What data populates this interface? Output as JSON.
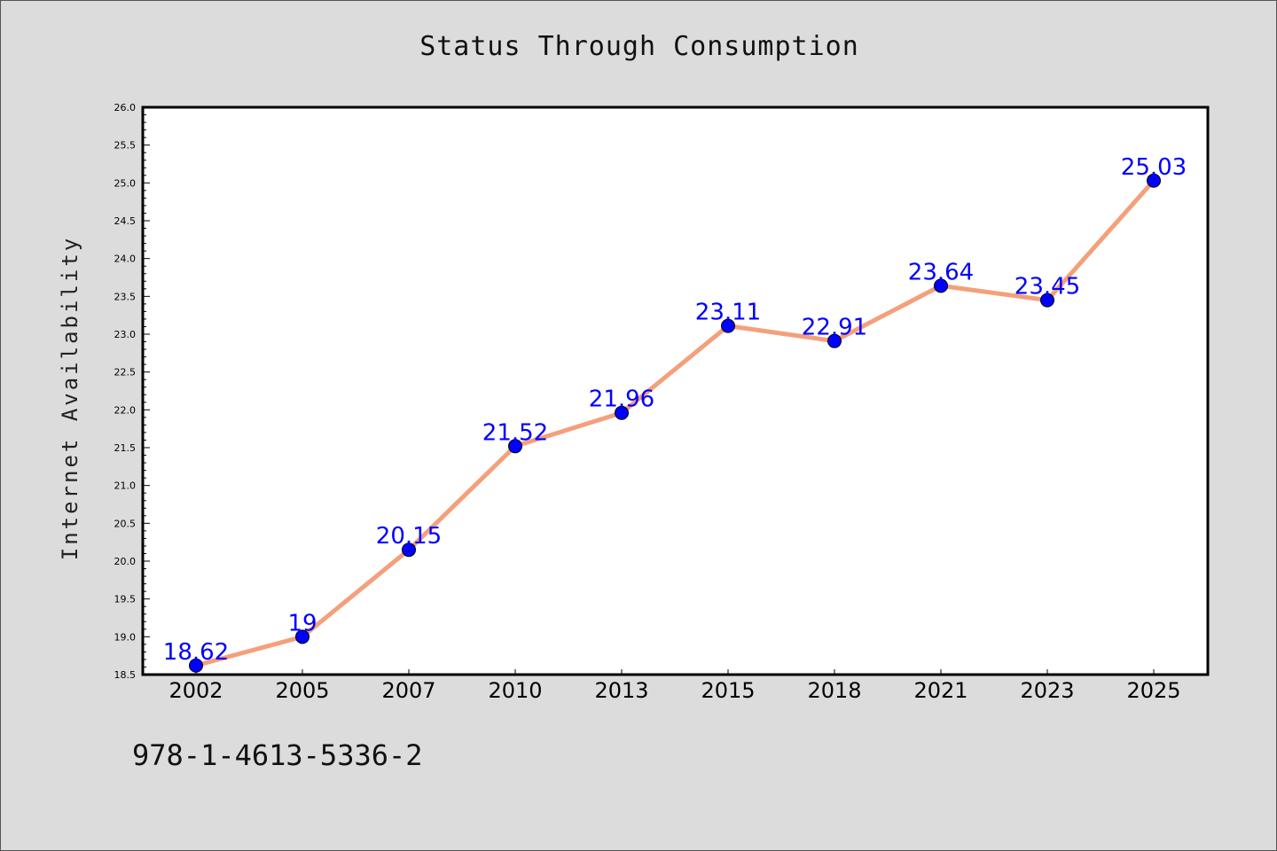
{
  "page": {
    "footer_code": "978-1-4613-5336-2"
  },
  "chart_data": {
    "type": "line",
    "title": "Status Through Consumption",
    "xlabel": "",
    "ylabel": "Internet Availability",
    "categories": [
      "2002",
      "2005",
      "2007",
      "2010",
      "2013",
      "2015",
      "2018",
      "2021",
      "2023",
      "2025"
    ],
    "series": [
      {
        "values": [
          18.62,
          19,
          20.15,
          21.52,
          21.96,
          23.11,
          22.91,
          23.64,
          23.45,
          25.03
        ],
        "data_labels": [
          "18.62",
          "19",
          "20.15",
          "21.52",
          "21.96",
          "23.11",
          "22.91",
          "23.64",
          "23.45",
          "25.03"
        ],
        "line_color": "#f4a07a",
        "marker_color": "#0000ff"
      }
    ],
    "ylim": [
      18.5,
      26.0
    ],
    "y_ticks": [
      "18.5",
      "19.0",
      "19.5",
      "20.0",
      "20.5",
      "21.0",
      "21.5",
      "22.0",
      "22.5",
      "23.0",
      "23.5",
      "24.0",
      "24.5",
      "25.0",
      "25.5",
      "26.0"
    ],
    "grid": false,
    "legend": "none",
    "label_color": "#0000ff"
  }
}
